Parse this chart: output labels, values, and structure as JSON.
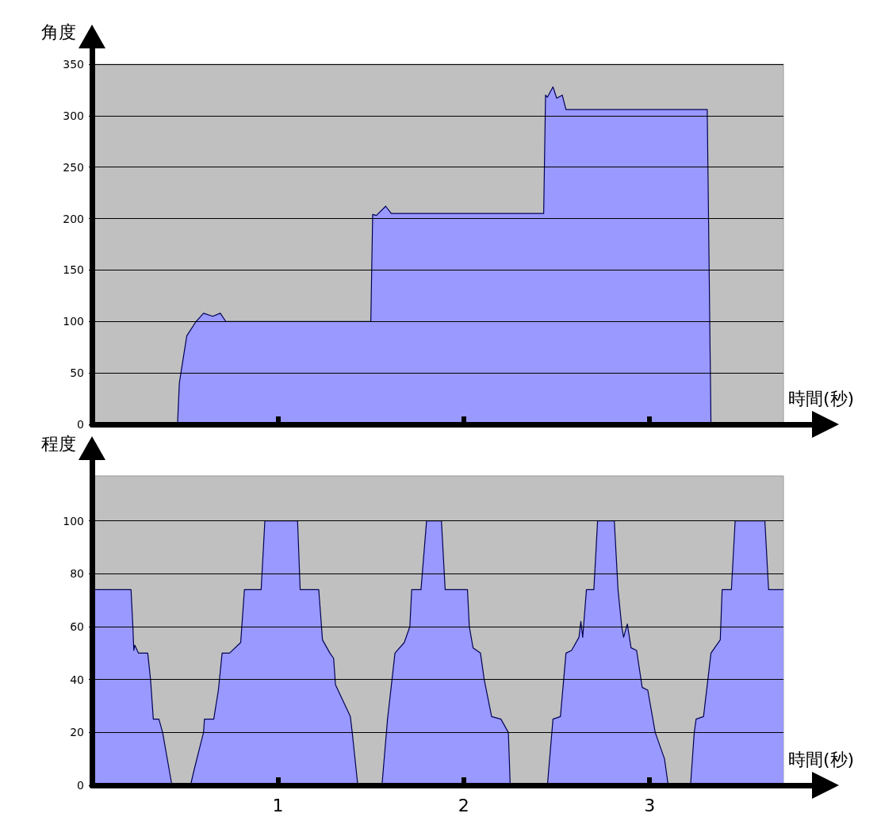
{
  "chart_data": [
    {
      "type": "area",
      "ylabel": "角度",
      "xlabel": "時間(秒)",
      "xlim": [
        0,
        3.72
      ],
      "xticks": [
        {
          "value": 1,
          "label": null
        },
        {
          "value": 2,
          "label": null
        },
        {
          "value": 3,
          "label": null
        }
      ],
      "ylim": [
        0,
        350
      ],
      "yticks": [
        0,
        50,
        100,
        150,
        200,
        250,
        300,
        350
      ],
      "grid": "y",
      "tick_labels": "y",
      "series": [
        {
          "color": "#9999ff",
          "x": [
            0,
            0.46,
            0.47,
            0.48,
            0.51,
            0.56,
            0.6,
            0.65,
            0.69,
            0.72,
            1.5,
            1.51,
            1.53,
            1.58,
            1.61,
            2.43,
            2.44,
            2.45,
            2.48,
            2.5,
            2.53,
            2.55,
            3.31,
            3.33,
            3.72
          ],
          "values": [
            0,
            0,
            40,
            52,
            86,
            100,
            108,
            105,
            108,
            100,
            100,
            204,
            203,
            212,
            205,
            205,
            320,
            318,
            328,
            317,
            320,
            306,
            306,
            0,
            0
          ]
        }
      ]
    },
    {
      "type": "area",
      "ylabel": "程度",
      "xlabel": "時間(秒)",
      "xlim": [
        0,
        3.72
      ],
      "xticks": [
        1,
        2,
        3
      ],
      "ylim": [
        0,
        117
      ],
      "yticks": [
        0,
        20,
        40,
        60,
        80,
        100
      ],
      "grid": "y",
      "series": [
        {
          "color": "#9999ff",
          "x": [
            0,
            0.21,
            0.22,
            0.225,
            0.23,
            0.25,
            0.3,
            0.315,
            0.33,
            0.36,
            0.38,
            0.43,
            0.53,
            0.55,
            0.6,
            0.605,
            0.655,
            0.68,
            0.7,
            0.74,
            0.8,
            0.82,
            0.91,
            0.93,
            1.106,
            1.12,
            1.22,
            1.24,
            1.28,
            1.3,
            1.31,
            1.39,
            1.4,
            1.43,
            1.56,
            1.59,
            1.63,
            1.68,
            1.71,
            1.72,
            1.77,
            1.8,
            1.88,
            1.9,
            2.02,
            2.03,
            2.05,
            2.09,
            2.11,
            2.15,
            2.2,
            2.24,
            2.25,
            2.45,
            2.48,
            2.52,
            2.55,
            2.58,
            2.62,
            2.63,
            2.64,
            2.66,
            2.7,
            2.72,
            2.81,
            2.83,
            2.85,
            2.86,
            2.88,
            2.9,
            2.93,
            2.96,
            2.99,
            3.03,
            3.08,
            3.1,
            3.22,
            3.24,
            3.25,
            3.29,
            3.33,
            3.38,
            3.39,
            3.44,
            3.46,
            3.62,
            3.64,
            3.72
          ],
          "values": [
            74,
            74,
            60,
            51,
            53,
            50,
            50,
            40,
            25,
            25,
            20,
            0,
            0,
            6,
            20,
            25,
            25,
            36,
            50,
            50,
            54,
            74,
            74,
            100,
            100,
            74,
            74,
            55,
            50,
            48,
            38,
            26,
            20,
            0,
            0,
            25,
            50,
            54,
            60,
            74,
            74,
            100,
            100,
            74,
            74,
            60,
            52,
            50,
            40,
            26,
            25,
            20,
            0,
            0,
            25,
            26,
            50,
            51,
            56,
            62,
            56,
            74,
            74,
            100,
            100,
            74,
            60,
            56,
            61,
            52,
            51,
            37,
            36,
            20,
            10,
            0,
            0,
            20,
            25,
            26,
            50,
            55,
            74,
            74,
            100,
            100,
            74,
            74
          ]
        }
      ]
    }
  ]
}
